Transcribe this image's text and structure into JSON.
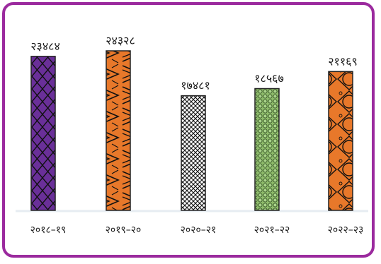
{
  "chart_data": {
    "type": "bar",
    "categories": [
      "२०१८–१९",
      "२०१९–२०",
      "२०२०–२१",
      "२०२१–२२",
      "२०२२–२३"
    ],
    "value_labels": [
      "२३४८४",
      "२४३२८",
      "१७४८१",
      "१८५६७",
      "२११६९"
    ],
    "values": [
      23484,
      24328,
      17481,
      18567,
      21169
    ],
    "title": "",
    "xlabel": "",
    "ylabel": "",
    "ylim": [
      0,
      25000
    ],
    "grid": false,
    "legend": "none",
    "bar_styles": [
      {
        "fill": "#6a2f99",
        "pattern": "diamond"
      },
      {
        "fill": "#e8782a",
        "pattern": "zigzag"
      },
      {
        "fill": "#ffffff",
        "pattern": "crosshatch"
      },
      {
        "fill": "#8dba6a",
        "pattern": "dots"
      },
      {
        "fill": "#e8782a",
        "pattern": "circles"
      }
    ]
  }
}
